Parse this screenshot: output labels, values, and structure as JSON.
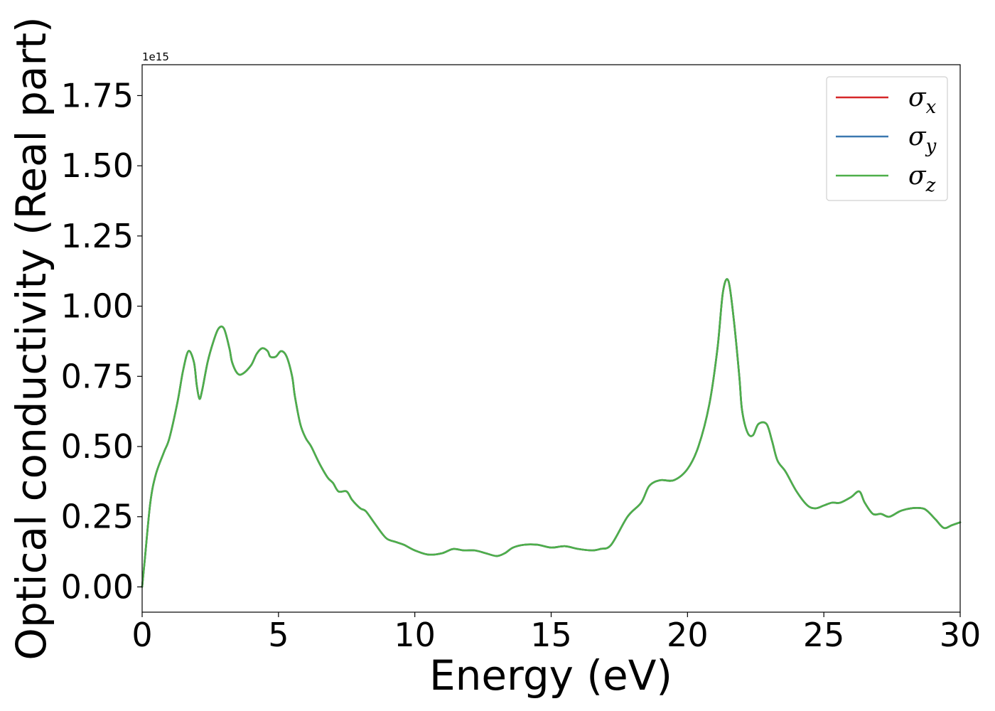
{
  "chart_data": {
    "type": "line",
    "xlabel": "Energy (eV)",
    "ylabel": "Optical conductivity (Real part)",
    "y_offset_label": "1e15",
    "xlim": [
      0,
      30
    ],
    "ylim": [
      -0.09,
      1.86
    ],
    "x_ticks": [
      0,
      5,
      10,
      15,
      20,
      25,
      30
    ],
    "x_tick_labels": [
      "0",
      "5",
      "10",
      "15",
      "20",
      "25",
      "30"
    ],
    "y_ticks": [
      0.0,
      0.25,
      0.5,
      0.75,
      1.0,
      1.25,
      1.5,
      1.75
    ],
    "y_tick_labels": [
      "0.00",
      "0.25",
      "0.50",
      "0.75",
      "1.00",
      "1.25",
      "1.50",
      "1.75"
    ],
    "grid": false,
    "legend_position": "top-right",
    "x": [
      0.0,
      0.1,
      0.3,
      0.5,
      0.8,
      1.0,
      1.3,
      1.5,
      1.7,
      1.9,
      2.0,
      2.1,
      2.2,
      2.4,
      2.6,
      2.8,
      3.0,
      3.2,
      3.3,
      3.5,
      3.7,
      4.0,
      4.2,
      4.4,
      4.6,
      4.7,
      4.9,
      5.1,
      5.3,
      5.5,
      5.6,
      5.8,
      6.0,
      6.2,
      6.5,
      6.8,
      7.0,
      7.2,
      7.5,
      7.7,
      8.0,
      8.2,
      8.5,
      8.8,
      9.0,
      9.3,
      9.6,
      10.0,
      10.5,
      11.0,
      11.4,
      11.8,
      12.2,
      12.6,
      13.0,
      13.3,
      13.6,
      14.0,
      14.5,
      15.0,
      15.5,
      16.0,
      16.5,
      16.8,
      17.2,
      17.8,
      18.3,
      18.6,
      19.0,
      19.5,
      20.0,
      20.4,
      20.8,
      21.1,
      21.3,
      21.5,
      21.7,
      21.9,
      22.0,
      22.2,
      22.4,
      22.6,
      22.9,
      23.1,
      23.3,
      23.6,
      24.0,
      24.4,
      24.7,
      25.0,
      25.3,
      25.6,
      26.0,
      26.3,
      26.5,
      26.8,
      27.1,
      27.4,
      27.8,
      28.2,
      28.6,
      28.8,
      29.1,
      29.4,
      29.7,
      30.0
    ],
    "series": [
      {
        "name": "σx",
        "color": "#d62728",
        "y": [
          0.0,
          0.1,
          0.3,
          0.4,
          0.48,
          0.53,
          0.66,
          0.77,
          0.84,
          0.8,
          0.72,
          0.67,
          0.7,
          0.8,
          0.87,
          0.92,
          0.92,
          0.85,
          0.8,
          0.76,
          0.76,
          0.79,
          0.83,
          0.85,
          0.84,
          0.82,
          0.82,
          0.84,
          0.82,
          0.75,
          0.68,
          0.58,
          0.53,
          0.5,
          0.44,
          0.39,
          0.37,
          0.34,
          0.34,
          0.31,
          0.28,
          0.27,
          0.23,
          0.19,
          0.17,
          0.16,
          0.15,
          0.13,
          0.115,
          0.12,
          0.135,
          0.13,
          0.13,
          0.12,
          0.11,
          0.12,
          0.14,
          0.15,
          0.15,
          0.14,
          0.145,
          0.135,
          0.13,
          0.135,
          0.15,
          0.25,
          0.3,
          0.36,
          0.38,
          0.38,
          0.42,
          0.5,
          0.65,
          0.85,
          1.05,
          1.09,
          0.95,
          0.75,
          0.63,
          0.55,
          0.54,
          0.58,
          0.58,
          0.52,
          0.45,
          0.41,
          0.34,
          0.29,
          0.28,
          0.29,
          0.3,
          0.3,
          0.32,
          0.34,
          0.3,
          0.26,
          0.26,
          0.25,
          0.27,
          0.28,
          0.28,
          0.27,
          0.24,
          0.21,
          0.22,
          0.23
        ]
      },
      {
        "name": "σy",
        "color": "#3b78b0",
        "y": [
          0.0,
          0.1,
          0.3,
          0.4,
          0.48,
          0.53,
          0.66,
          0.77,
          0.84,
          0.8,
          0.72,
          0.67,
          0.7,
          0.8,
          0.87,
          0.92,
          0.92,
          0.85,
          0.8,
          0.76,
          0.76,
          0.79,
          0.83,
          0.85,
          0.84,
          0.82,
          0.82,
          0.84,
          0.82,
          0.75,
          0.68,
          0.58,
          0.53,
          0.5,
          0.44,
          0.39,
          0.37,
          0.34,
          0.34,
          0.31,
          0.28,
          0.27,
          0.23,
          0.19,
          0.17,
          0.16,
          0.15,
          0.13,
          0.115,
          0.12,
          0.135,
          0.13,
          0.13,
          0.12,
          0.11,
          0.12,
          0.14,
          0.15,
          0.15,
          0.14,
          0.145,
          0.135,
          0.13,
          0.135,
          0.15,
          0.25,
          0.3,
          0.36,
          0.38,
          0.38,
          0.42,
          0.5,
          0.65,
          0.85,
          1.05,
          1.09,
          0.95,
          0.75,
          0.63,
          0.55,
          0.54,
          0.58,
          0.58,
          0.52,
          0.45,
          0.41,
          0.34,
          0.29,
          0.28,
          0.29,
          0.3,
          0.3,
          0.32,
          0.34,
          0.3,
          0.26,
          0.26,
          0.25,
          0.27,
          0.28,
          0.28,
          0.27,
          0.24,
          0.21,
          0.22,
          0.23
        ]
      },
      {
        "name": "σz",
        "color": "#4daf4a",
        "y": [
          0.0,
          0.1,
          0.3,
          0.4,
          0.48,
          0.53,
          0.66,
          0.77,
          0.84,
          0.8,
          0.72,
          0.67,
          0.7,
          0.8,
          0.87,
          0.92,
          0.92,
          0.85,
          0.8,
          0.76,
          0.76,
          0.79,
          0.83,
          0.85,
          0.84,
          0.82,
          0.82,
          0.84,
          0.82,
          0.75,
          0.68,
          0.58,
          0.53,
          0.5,
          0.44,
          0.39,
          0.37,
          0.34,
          0.34,
          0.31,
          0.28,
          0.27,
          0.23,
          0.19,
          0.17,
          0.16,
          0.15,
          0.13,
          0.115,
          0.12,
          0.135,
          0.13,
          0.13,
          0.12,
          0.11,
          0.12,
          0.14,
          0.15,
          0.15,
          0.14,
          0.145,
          0.135,
          0.13,
          0.135,
          0.15,
          0.25,
          0.3,
          0.36,
          0.38,
          0.38,
          0.42,
          0.5,
          0.65,
          0.85,
          1.05,
          1.09,
          0.95,
          0.75,
          0.63,
          0.55,
          0.54,
          0.58,
          0.58,
          0.52,
          0.45,
          0.41,
          0.34,
          0.29,
          0.28,
          0.29,
          0.3,
          0.3,
          0.32,
          0.34,
          0.3,
          0.26,
          0.26,
          0.25,
          0.27,
          0.28,
          0.28,
          0.27,
          0.24,
          0.21,
          0.22,
          0.23
        ]
      }
    ],
    "legend": [
      {
        "symbol": "σ",
        "sub": "x",
        "color": "#d62728"
      },
      {
        "symbol": "σ",
        "sub": "y",
        "color": "#3b78b0"
      },
      {
        "symbol": "σ",
        "sub": "z",
        "color": "#4daf4a"
      }
    ]
  }
}
